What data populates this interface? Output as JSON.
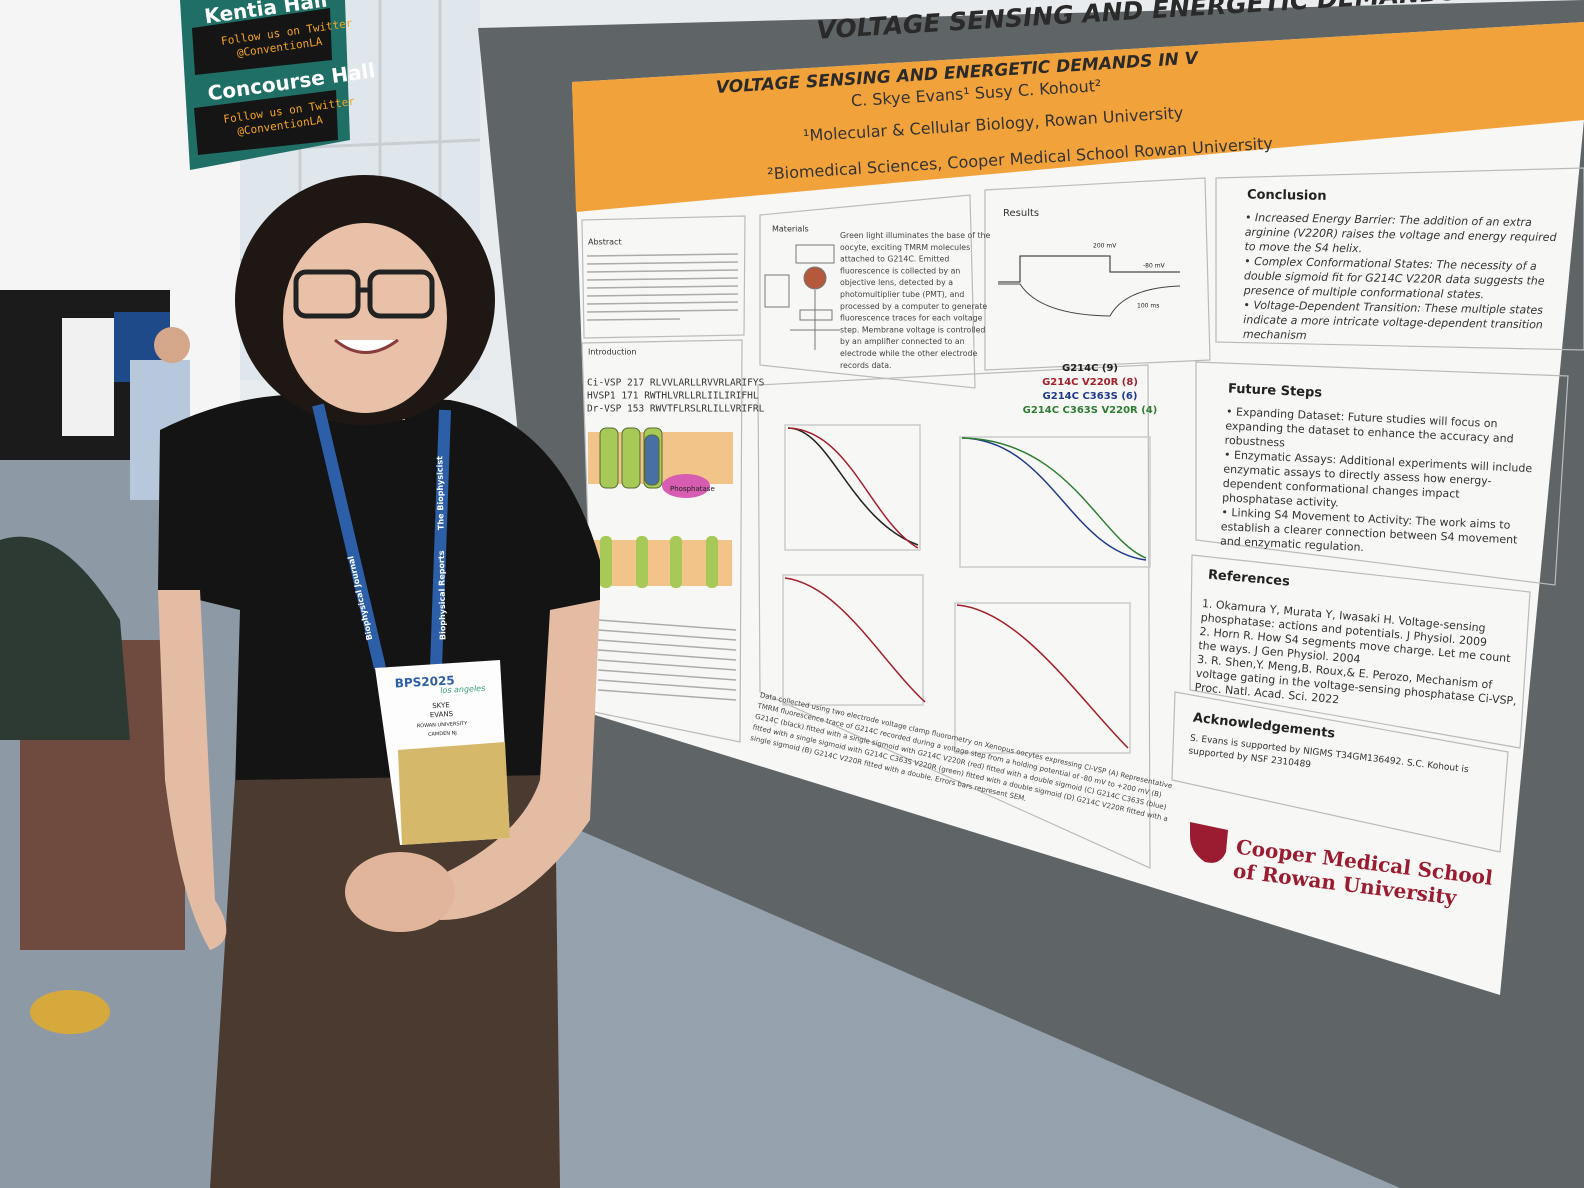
{
  "signs": {
    "hall_1": "Kentia Hall",
    "twitter_1": "Follow us on Twitter",
    "handle_1": "@ConventionLA",
    "hall_2": "Concourse Hall",
    "twitter_2": "Follow us on Twitter",
    "handle_2": "@ConventionLA"
  },
  "poster": {
    "title": "VOLTAGE SENSING AND ENERGETIC DEMANDS IN VO",
    "title_repeat": "VOLTAGE SENSING AND ENERGETIC DEMANDS IN V",
    "authors": "C. Skye Evans¹ Susy C. Kohout²",
    "affiliation_1": "¹Molecular & Cellular Biology, Rowan University",
    "affiliation_2": "²Biomedical Sciences, Cooper Medical School Rowan University",
    "sections": {
      "abstract": "Abstract",
      "introduction": "Introduction",
      "materials": "Materials",
      "results": "Results"
    },
    "sequences": [
      "Ci-VSP 217 RLVVLARLLRVVRLARIFYS",
      "HVSP1 171 RWTHLVRLLRLIILIRIFHL",
      "Dr-VSP 153 RWVTFLRSLRLILLVRIFRL"
    ],
    "diagram_label": "Phosphatase",
    "materials_text": [
      "Green light illuminates the base of the",
      "oocyte, exciting TMRM molecules",
      "attached to G214C. Emitted",
      "fluorescence is collected by an",
      "objective lens, detected by a",
      "photomultiplier tube (PMT), and",
      "processed by a computer to generate",
      "fluorescence traces for each voltage",
      "step. Membrane voltage is controlled",
      "by an amplifier connected to an",
      "electrode while the other electrode",
      "records data."
    ],
    "trace_labels": [
      "200 mV",
      "-80 mV",
      "100 ms"
    ],
    "legend": [
      {
        "text": "G214C (9)",
        "color": "#222222"
      },
      {
        "text": "G214C V220R (8)",
        "color": "#a3202c"
      },
      {
        "text": "G214C C363S (6)",
        "color": "#1f3a8a"
      },
      {
        "text": "G214C C363S V220R (4)",
        "color": "#2e7d32"
      }
    ],
    "caption": [
      "Data collected using two electrode voltage clamp fluorometry on Xenopus oocytes expressing Ci-VSP (A) Representative",
      "TMRM fluorescence trace of G214C recorded during a voltage step from a holding potential of -80 mV to +200 mV (B)",
      "G214C (black) fitted with a single sigmoid with G214C V220R (red) fitted with a double sigmoid (C) G214C C363S (blue)",
      "fitted with a single sigmoid with G214C C363S V220R (green) fitted with a double sigmoid (D) G214C V220R fitted with a",
      "single sigmoid (B) G214C V220R fitted with a double. Errors bars represent SEM."
    ],
    "conclusion": {
      "heading": "Conclusion",
      "lines": [
        "• Increased Energy Barrier: The addition of an extra",
        "arginine (V220R) raises the voltage and energy required",
        "to move the S4 helix.",
        "• Complex Conformational States: The necessity of a",
        "double sigmoid fit for G214C V220R data suggests the",
        "presence of multiple conformational states.",
        "• Voltage-Dependent Transition: These multiple states",
        "indicate a more intricate voltage-dependent transition",
        "mechanism"
      ]
    },
    "future_steps": {
      "heading": "Future Steps",
      "lines": [
        "• Expanding Dataset: Future studies will focus on",
        "expanding the dataset to enhance the accuracy and",
        "robustness",
        "• Enzymatic Assays: Additional experiments will include",
        "enzymatic assays to directly assess how energy-",
        "dependent conformational changes impact",
        "phosphatase activity.",
        "• Linking S4 Movement to Activity: The work aims to",
        "establish a clearer connection between S4 movement",
        "and enzymatic regulation."
      ]
    },
    "references": {
      "heading": "References",
      "lines": [
        "1. Okamura Y, Murata Y, Iwasaki H. Voltage-sensing",
        "phosphatase: actions and potentials. J Physiol. 2009",
        "2. Horn R. How S4 segments move charge. Let me count",
        "the ways. J Gen Physiol. 2004",
        "3. R. Shen,Y. Meng,B. Roux,& E. Perozo, Mechanism of",
        "voltage gating in the voltage-sensing phosphatase Ci-VSP,",
        "Proc. Natl. Acad. Sci. 2022"
      ]
    },
    "acknowledgements": {
      "heading": "Acknowledgements",
      "lines": [
        "S. Evans is supported by NIGMS T34GM136492. S.C. Kohout is",
        "supported by NSF 2310489"
      ]
    },
    "logo": [
      "Cooper Medical School",
      "of Rowan University"
    ]
  },
  "badge": {
    "event": "BPS2025",
    "city": "los angeles",
    "first": "SKYE",
    "last": "EVANS",
    "org": "ROWAN UNIVERSITY",
    "place": "CAMDEN NJ"
  },
  "lanyard": [
    "Biophysical Journal",
    "Biophysical Reports",
    "The Biophysicist"
  ]
}
